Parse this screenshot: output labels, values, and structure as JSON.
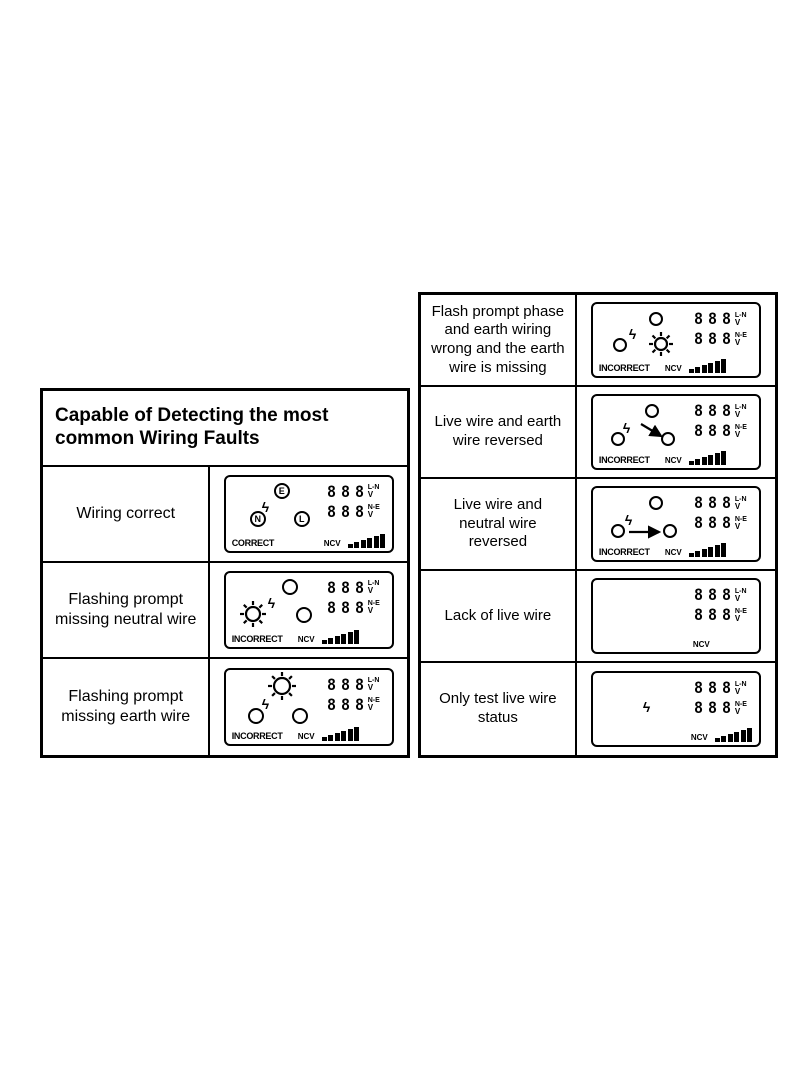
{
  "title": "Capable of Detecting the most common Wiring Faults",
  "colors": {
    "fg": "#000000",
    "bg": "#ffffff"
  },
  "digit_labels": {
    "top": "L-N",
    "bottom": "N-E",
    "unit": "V"
  },
  "ncv_text": "NCV",
  "status": {
    "correct": "CORRECT",
    "incorrect": "INCORRECT"
  },
  "left_rows": [
    {
      "desc": "Wiring correct",
      "type": "correct"
    },
    {
      "desc": "Flashing prompt missing neutral wire",
      "type": "miss_neutral"
    },
    {
      "desc": "Flashing prompt missing earth wire",
      "type": "miss_earth"
    }
  ],
  "right_rows": [
    {
      "desc": "Flash prompt phase and earth wiring wrong and the earth wire is missing",
      "type": "phase_earth_wrong"
    },
    {
      "desc": "Live wire and earth wire reversed",
      "type": "live_earth_rev"
    },
    {
      "desc": "Live wire and neutral wire reversed",
      "type": "live_neutral_rev"
    },
    {
      "desc": "Lack of live wire",
      "type": "no_live"
    },
    {
      "desc": "Only test live wire  status",
      "type": "only_live"
    }
  ],
  "ncv_bar_heights": [
    4,
    6,
    8,
    10,
    12,
    14
  ]
}
